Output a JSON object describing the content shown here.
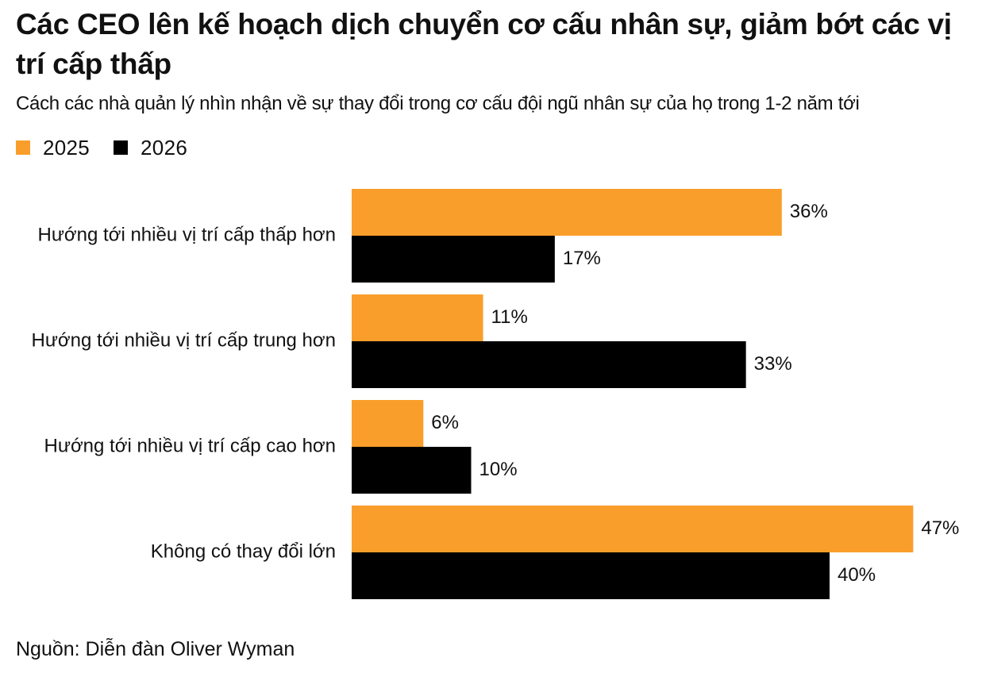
{
  "title": "Các CEO lên kế hoạch dịch chuyển cơ cấu nhân sự, giảm bớt các vị trí cấp thấp",
  "subtitle": "Cách các nhà quản lý nhìn nhận về sự thay đổi trong cơ cấu đội ngũ nhân sự của họ trong 1-2 năm tới",
  "legend": {
    "series_2025": "2025",
    "series_2026": "2026"
  },
  "colors": {
    "series_2025": "#F99E2B",
    "series_2026": "#000000"
  },
  "source": "Nguồn: Diễn đàn Oliver Wyman",
  "chart_data": {
    "type": "bar",
    "orientation": "horizontal",
    "title": "Các CEO lên kế hoạch dịch chuyển cơ cấu nhân sự, giảm bớt các vị trí cấp thấp",
    "subtitle": "Cách các nhà quản lý nhìn nhận về sự thay đổi trong cơ cấu đội ngũ nhân sự của họ trong 1-2 năm tới",
    "categories": [
      "Hướng tới nhiều vị trí cấp thấp hơn",
      "Hướng tới nhiều vị trí cấp trung hơn",
      "Hướng tới nhiều vị trí cấp cao hơn",
      "Không có thay đổi lớn"
    ],
    "series": [
      {
        "name": "2025",
        "values": [
          36,
          11,
          6,
          47
        ],
        "labels": [
          "36%",
          "11%",
          "6%",
          "47%"
        ]
      },
      {
        "name": "2026",
        "values": [
          17,
          33,
          10,
          40
        ],
        "labels": [
          "17%",
          "33%",
          "10%",
          "40%"
        ]
      }
    ],
    "unit": "%",
    "xlim": [
      0,
      47
    ],
    "grid": false,
    "legend_position": "top-left"
  }
}
